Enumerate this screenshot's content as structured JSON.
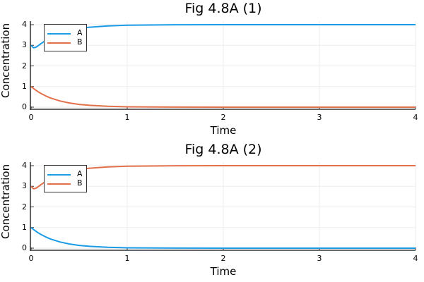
{
  "colors": {
    "A": "#1a9be6",
    "B": "#e2704a",
    "grid": "#ededed",
    "axis": "#333333"
  },
  "plots": [
    {
      "title": "Fig 4.8A (1)",
      "xlabel": "Time",
      "ylabel": "Concentration",
      "xticks": [
        "0",
        "1",
        "2",
        "3",
        "4"
      ],
      "yticks": [
        "0",
        "1",
        "2",
        "3",
        "4"
      ],
      "legend": [
        {
          "label": "A"
        },
        {
          "label": "B"
        }
      ]
    },
    {
      "title": "Fig 4.8A (2)",
      "xlabel": "Time",
      "ylabel": "Concentration",
      "xticks": [
        "0",
        "1",
        "2",
        "3",
        "4"
      ],
      "yticks": [
        "0",
        "1",
        "2",
        "3",
        "4"
      ],
      "legend": [
        {
          "label": "A"
        },
        {
          "label": "B"
        }
      ]
    }
  ],
  "chart_data": [
    {
      "type": "line",
      "title": "Fig 4.8A (1)",
      "xlabel": "Time",
      "ylabel": "Concentration",
      "xlim": [
        0,
        4
      ],
      "ylim": [
        0,
        4
      ],
      "grid": true,
      "legend_position": "top-left",
      "x": [
        0,
        0.025,
        0.05,
        0.075,
        0.1,
        0.15,
        0.2,
        0.3,
        0.4,
        0.5,
        0.6,
        0.8,
        1.0,
        1.5,
        2,
        3,
        4
      ],
      "series": [
        {
          "name": "A",
          "color": "#1a9be6",
          "values": [
            3,
            2.88,
            2.907,
            2.983,
            3.069,
            3.232,
            3.371,
            3.579,
            3.717,
            3.811,
            3.873,
            3.943,
            3.975,
            3.996,
            4,
            4,
            4
          ]
        },
        {
          "name": "B",
          "color": "#e2704a",
          "values": [
            1,
            0.905,
            0.819,
            0.741,
            0.67,
            0.549,
            0.449,
            0.301,
            0.202,
            0.135,
            0.091,
            0.041,
            0.018,
            0.0025,
            0.0003,
            0,
            0
          ]
        }
      ]
    },
    {
      "type": "line",
      "title": "Fig 4.8A (2)",
      "xlabel": "Time",
      "ylabel": "Concentration",
      "xlim": [
        0,
        4
      ],
      "ylim": [
        0,
        4
      ],
      "grid": true,
      "legend_position": "top-left",
      "x": [
        0,
        0.025,
        0.05,
        0.075,
        0.1,
        0.15,
        0.2,
        0.3,
        0.4,
        0.5,
        0.6,
        0.8,
        1.0,
        1.5,
        2,
        3,
        4
      ],
      "series": [
        {
          "name": "A",
          "color": "#1a9be6",
          "values": [
            1,
            0.905,
            0.819,
            0.741,
            0.67,
            0.549,
            0.449,
            0.301,
            0.202,
            0.135,
            0.091,
            0.041,
            0.018,
            0.0025,
            0.0003,
            0,
            0
          ]
        },
        {
          "name": "B",
          "color": "#e2704a",
          "values": [
            3,
            2.88,
            2.907,
            2.983,
            3.069,
            3.232,
            3.371,
            3.579,
            3.717,
            3.811,
            3.873,
            3.943,
            3.975,
            3.996,
            4,
            4,
            4
          ]
        }
      ]
    }
  ]
}
